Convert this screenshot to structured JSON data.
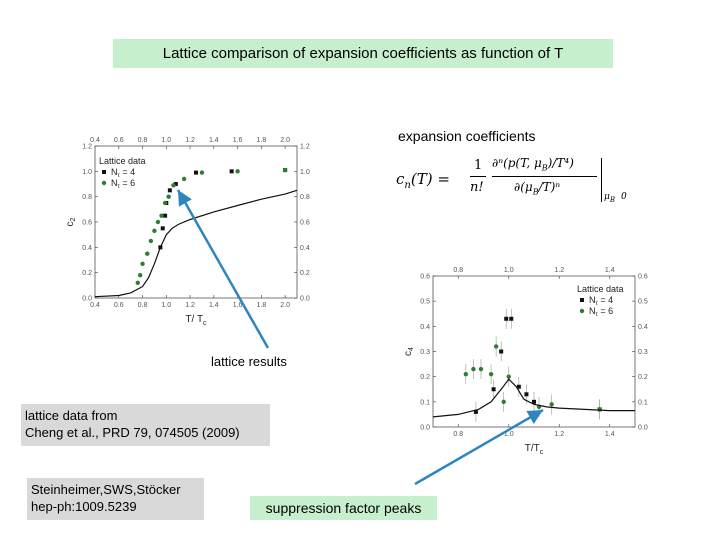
{
  "title": "Lattice comparison of expansion coefficients as function of T",
  "expansion_label": "expansion coefficients",
  "formula": {
    "lhs": "c",
    "lhs_sub": "n",
    "lhs_arg": "(T) =",
    "frac_num": "1",
    "frac_den": "n!",
    "deriv_num": "∂ⁿ(p(T, μ",
    "deriv_num2": "B",
    "deriv_num3": ")/T⁴)",
    "deriv_den": "∂(μ",
    "deriv_den2": "B",
    "deriv_den3": "/T)ⁿ",
    "eval": "μ",
    "eval_sub": "B",
    "eval_val": "0"
  },
  "lattice_results_label": "lattice results",
  "lattice_data_lines": [
    "lattice data from",
    "Cheng et al., PRD 79, 074505 (2009)"
  ],
  "authors_lines": [
    "Steinheimer,SWS,Stöcker",
    "hep-ph:1009.5239"
  ],
  "suppression_label": "suppression factor peaks",
  "colors": {
    "title_bg": "#c6efce",
    "grey_box": "#d9d9d9",
    "arrow": "#2e86c1",
    "nt4": "#111111",
    "nt6": "#2e7d32"
  },
  "chart_data": [
    {
      "type": "scatter",
      "ylabel": "c",
      "ylabel_sub": "2",
      "xlabel": "T/ T",
      "xlabel_sub": "c",
      "xlim": [
        0.4,
        2.1
      ],
      "ylim": [
        0,
        1.2
      ],
      "xticks": [
        "0.4",
        "0.6",
        "0.8",
        "1.0",
        "1.2",
        "1.4",
        "1.6",
        "1.8",
        "2.0"
      ],
      "xtick_values": [
        0.4,
        0.6,
        0.8,
        1.0,
        1.2,
        1.4,
        1.6,
        1.8,
        2.0
      ],
      "yticks": [
        "0.0",
        "0.2",
        "0.4",
        "0.6",
        "0.8",
        "1.0",
        "1.2"
      ],
      "ytick_values": [
        0,
        0.2,
        0.4,
        0.6,
        0.8,
        1.0,
        1.2
      ],
      "legend_title": "Lattice data",
      "legend_position": "top-left",
      "series": [
        {
          "name": "N",
          "name_sub": "τ",
          "name_suffix": "= 4",
          "marker": "square",
          "color": "#111111",
          "x": [
            0.95,
            0.97,
            0.99,
            1.0,
            1.03,
            1.08,
            1.25,
            1.55,
            2.0
          ],
          "y": [
            0.4,
            0.55,
            0.65,
            0.75,
            0.85,
            0.9,
            0.99,
            1.0,
            1.01
          ]
        },
        {
          "name": "N",
          "name_sub": "τ",
          "name_suffix": "= 6",
          "marker": "circle",
          "color": "#2e7d32",
          "x": [
            0.76,
            0.78,
            0.8,
            0.84,
            0.87,
            0.9,
            0.93,
            0.96,
            0.99,
            1.02,
            1.06,
            1.15,
            1.3,
            1.6,
            2.0
          ],
          "y": [
            0.12,
            0.18,
            0.27,
            0.35,
            0.45,
            0.53,
            0.6,
            0.65,
            0.75,
            0.8,
            0.89,
            0.94,
            0.99,
            1.0,
            1.01
          ]
        },
        {
          "name": "",
          "type": "line",
          "color": "#111111",
          "x": [
            0.4,
            0.6,
            0.7,
            0.8,
            0.85,
            0.9,
            0.95,
            1.0,
            1.05,
            1.1,
            1.2,
            1.4,
            1.6,
            1.8,
            2.0,
            2.1
          ],
          "y": [
            0.01,
            0.02,
            0.04,
            0.09,
            0.16,
            0.27,
            0.4,
            0.5,
            0.55,
            0.58,
            0.62,
            0.68,
            0.73,
            0.78,
            0.82,
            0.85
          ]
        }
      ]
    },
    {
      "type": "scatter",
      "ylabel": "c",
      "ylabel_sub": "4",
      "xlabel": "T/T",
      "xlabel_sub": "c",
      "xlim": [
        0.7,
        1.5
      ],
      "ylim": [
        0,
        0.6
      ],
      "xticks": [
        "0.8",
        "1.0",
        "1.2",
        "1.4"
      ],
      "xtick_values": [
        0.8,
        1.0,
        1.2,
        1.4
      ],
      "yticks": [
        "0.0",
        "0.1",
        "0.2",
        "0.3",
        "0.4",
        "0.5",
        "0.6"
      ],
      "ytick_values": [
        0,
        0.1,
        0.2,
        0.3,
        0.4,
        0.5,
        0.6
      ],
      "legend_title": "Lattice data",
      "legend_position": "top-right",
      "series": [
        {
          "name": "N",
          "name_sub": "τ",
          "name_suffix": "= 4",
          "marker": "square",
          "color": "#111111",
          "x": [
            0.87,
            0.94,
            0.97,
            0.99,
            1.01,
            1.04,
            1.07,
            1.1,
            1.36
          ],
          "y": [
            0.06,
            0.15,
            0.3,
            0.43,
            0.43,
            0.16,
            0.13,
            0.1,
            0.07
          ]
        },
        {
          "name": "N",
          "name_sub": "τ",
          "name_suffix": "= 6",
          "marker": "circle",
          "color": "#2e7d32",
          "x": [
            0.83,
            0.86,
            0.89,
            0.93,
            0.95,
            0.98,
            1.0,
            1.12,
            1.17,
            1.36
          ],
          "y": [
            0.21,
            0.23,
            0.23,
            0.21,
            0.32,
            0.1,
            0.2,
            0.08,
            0.09,
            0.07
          ]
        },
        {
          "name": "",
          "type": "line",
          "color": "#111111",
          "x": [
            0.7,
            0.8,
            0.88,
            0.93,
            0.97,
            1.0,
            1.03,
            1.06,
            1.1,
            1.15,
            1.2,
            1.3,
            1.4,
            1.5
          ],
          "y": [
            0.04,
            0.05,
            0.07,
            0.1,
            0.15,
            0.19,
            0.16,
            0.11,
            0.09,
            0.08,
            0.075,
            0.07,
            0.065,
            0.065
          ]
        }
      ]
    }
  ]
}
